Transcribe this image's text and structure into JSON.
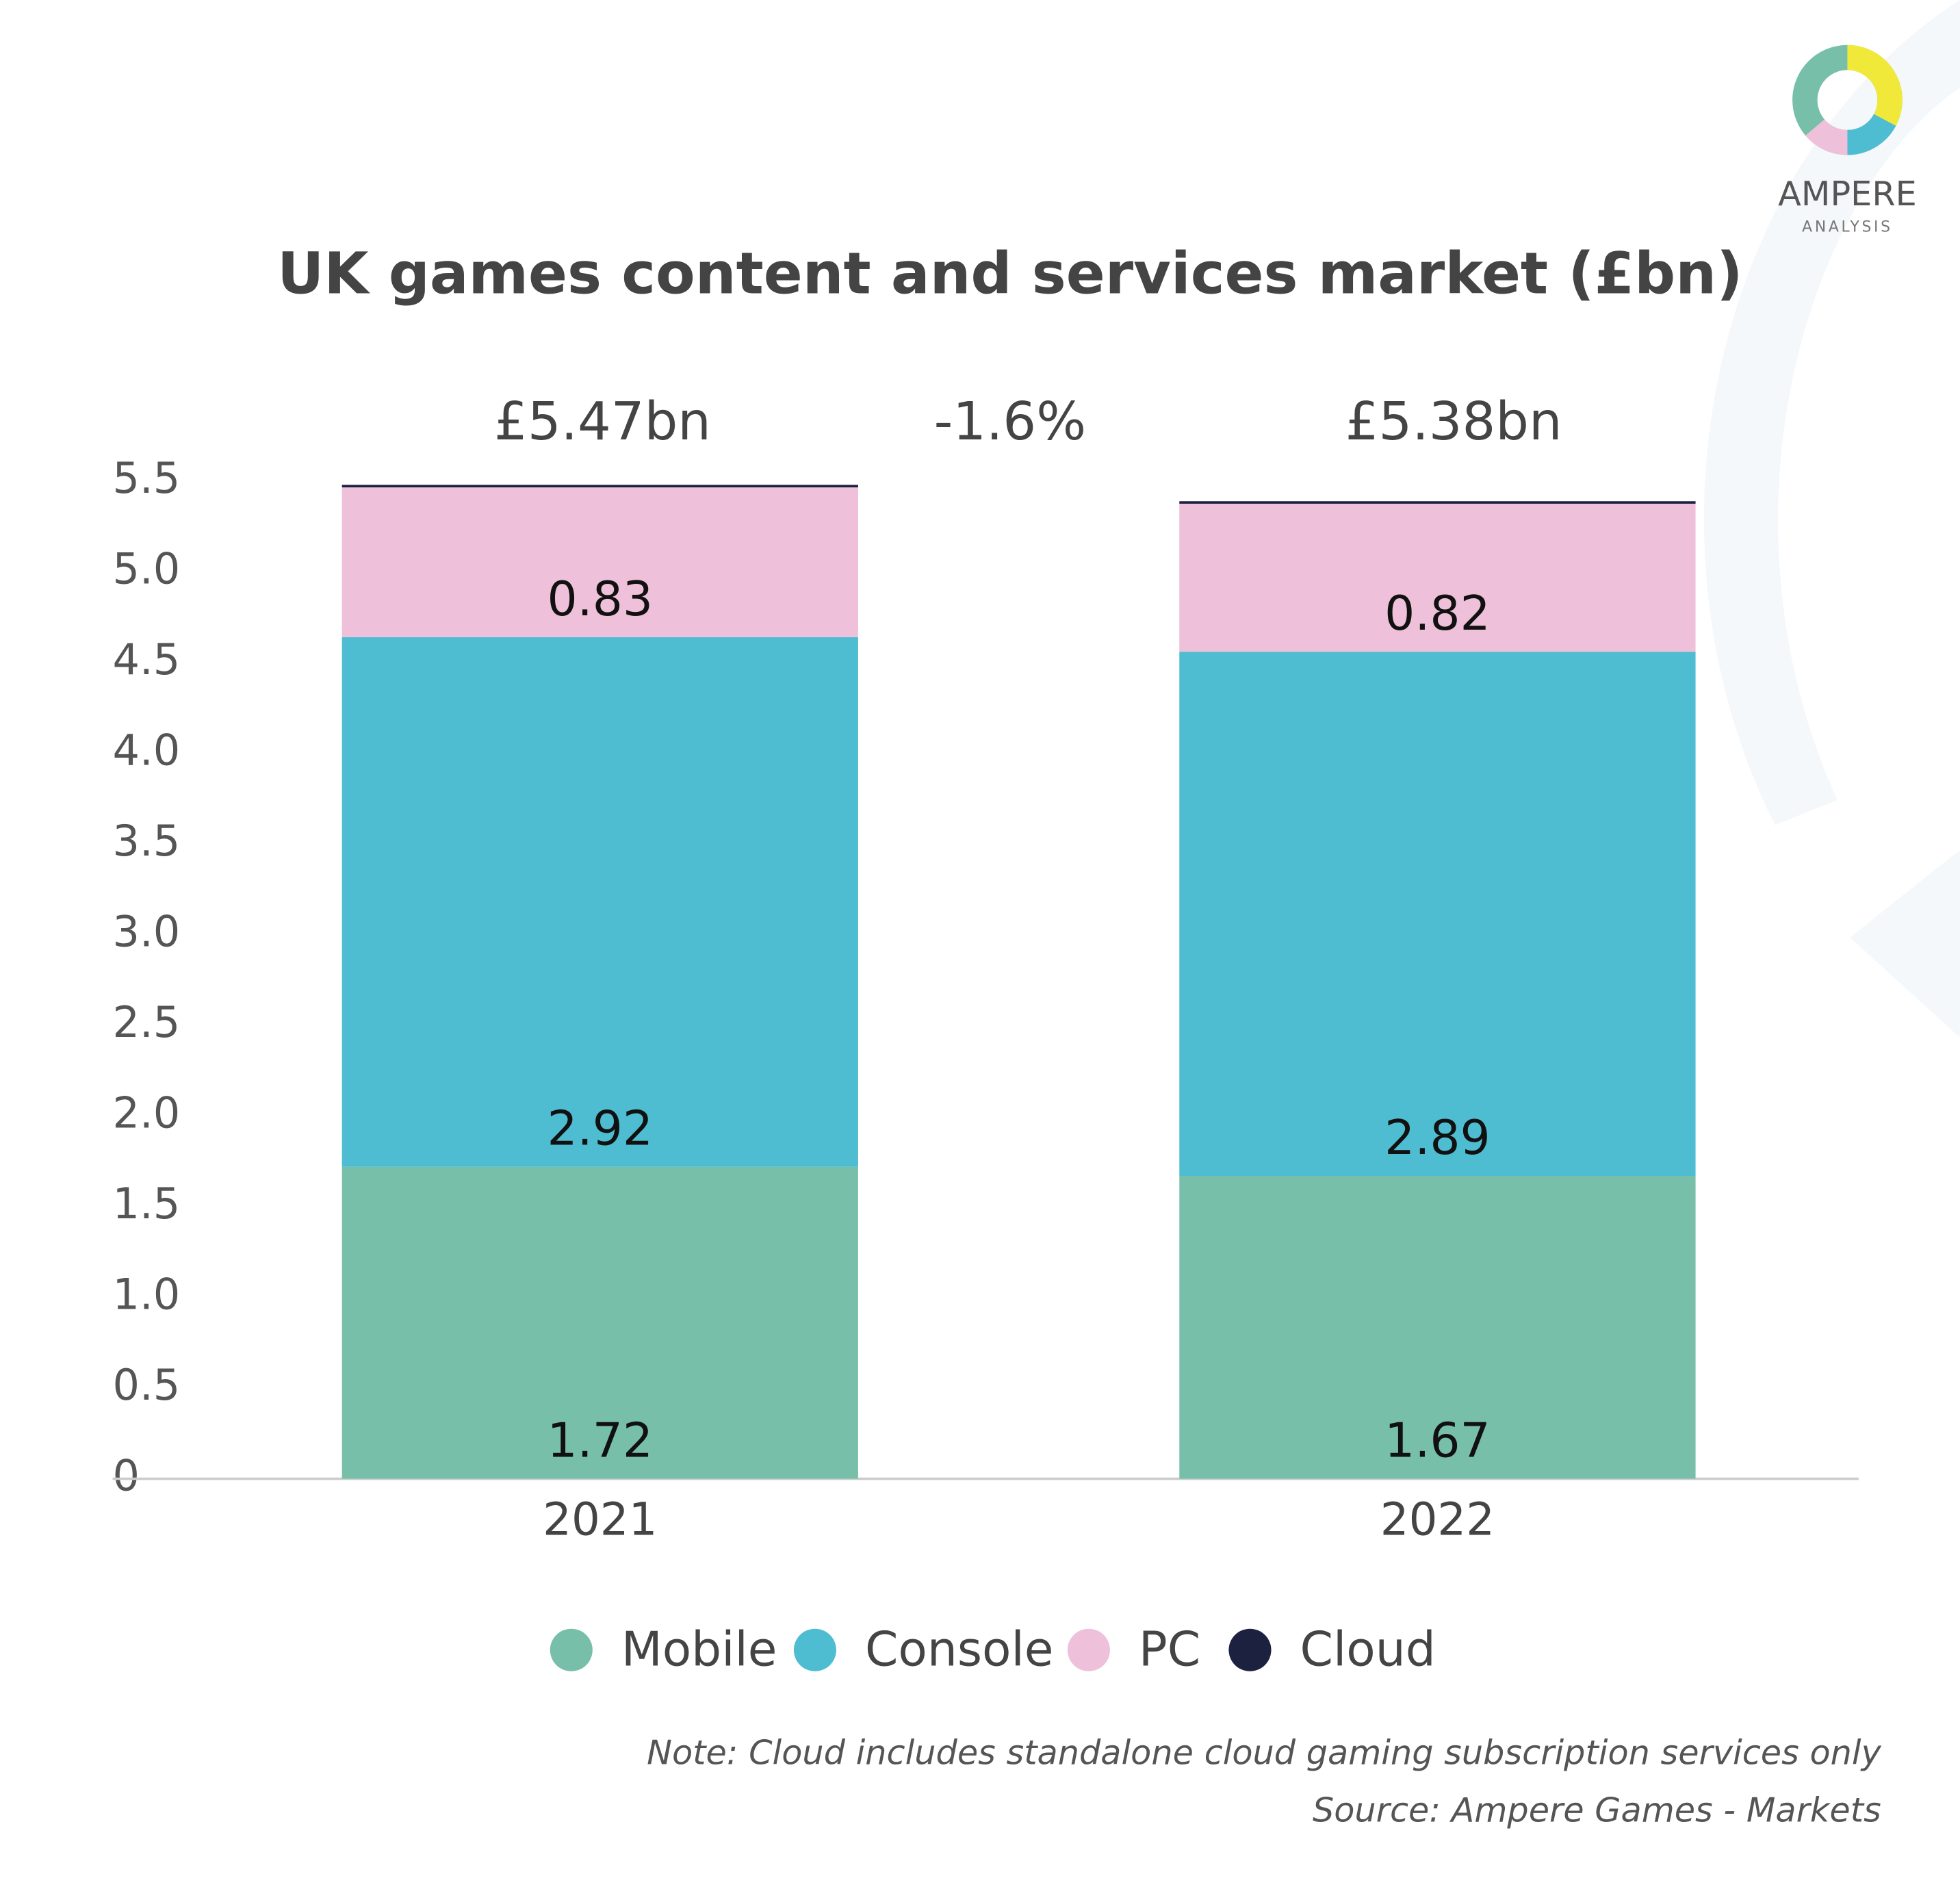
{
  "chart_data": {
    "type": "stacked_bar",
    "title": "UK games content and services market (£bn)",
    "categories": [
      "2021",
      "2022"
    ],
    "series": [
      {
        "name": "Mobile",
        "color": "#78bfaa",
        "values": [
          1.72,
          1.67
        ],
        "show_labels": true
      },
      {
        "name": "Console",
        "color": "#4ebdd1",
        "values": [
          2.92,
          2.89
        ],
        "show_labels": true
      },
      {
        "name": "PC",
        "color": "#efc0da",
        "values": [
          0.83,
          0.82
        ],
        "show_labels": true
      },
      {
        "name": "Cloud",
        "color": "#1d2140",
        "values": [
          0.01,
          0.01
        ],
        "show_labels": false
      }
    ],
    "ylim": [
      0,
      5.5
    ],
    "yticks": [
      0,
      {
        "value": 0.5,
        "label": "0.5"
      },
      {
        "value": 1,
        "label": "1.0"
      },
      {
        "value": 1.5,
        "label": "1.5"
      },
      {
        "value": 2,
        "label": "2.0"
      },
      {
        "value": 2.5,
        "label": "2.5"
      },
      {
        "value": 3,
        "label": "3.0"
      },
      {
        "value": 3.5,
        "label": "3.5"
      },
      {
        "value": 4,
        "label": "4.0"
      },
      {
        "value": 4.5,
        "label": "4.5"
      },
      {
        "value": 5,
        "label": "5.0"
      },
      {
        "value": 5.5,
        "label": "5.5"
      }
    ],
    "grid": false,
    "annotations": [
      "£5.47bn",
      "-1.6%",
      "£5.38bn"
    ],
    "note": "Note: Cloud includes standalone cloud gaming subscription services only",
    "source": "Source: Ampere Games - Markets",
    "logo": {
      "name": "AMPERE",
      "subname": "ANALYSIS"
    }
  }
}
